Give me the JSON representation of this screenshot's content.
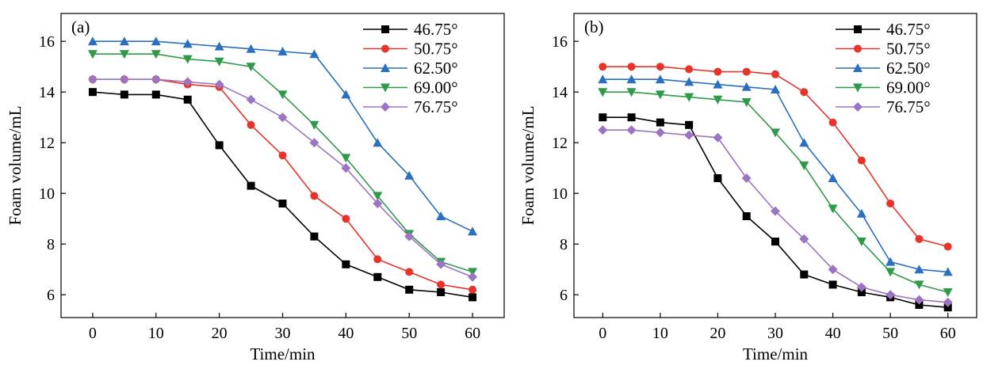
{
  "chart_data": [
    {
      "type": "line",
      "panel_label": "(a)",
      "xlabel": "Time/min",
      "ylabel": "Foam volume/mL",
      "xlim": [
        -5,
        65
      ],
      "ylim": [
        5.1,
        17.1
      ],
      "xticks": [
        0,
        10,
        20,
        30,
        40,
        50,
        60
      ],
      "yticks": [
        6,
        8,
        10,
        12,
        14,
        16
      ],
      "grid": false,
      "legend_position": "top-right",
      "x": [
        0,
        5,
        10,
        15,
        20,
        25,
        30,
        35,
        40,
        45,
        50,
        55,
        60
      ],
      "series": [
        {
          "name": "46.75°",
          "color": "#000000",
          "marker": "square",
          "values": [
            14.0,
            13.9,
            13.9,
            13.7,
            11.9,
            10.3,
            9.6,
            8.3,
            7.2,
            6.7,
            6.2,
            6.1,
            5.9
          ]
        },
        {
          "name": "50.75°",
          "color": "#e8332a",
          "marker": "circle",
          "values": [
            14.5,
            14.5,
            14.5,
            14.3,
            14.2,
            12.7,
            11.5,
            9.9,
            9.0,
            7.4,
            6.9,
            6.4,
            6.2
          ]
        },
        {
          "name": "62.50°",
          "color": "#2a6fc0",
          "marker": "triangle-up",
          "values": [
            16.0,
            16.0,
            16.0,
            15.9,
            15.8,
            15.7,
            15.6,
            15.5,
            13.9,
            12.0,
            10.7,
            9.1,
            8.5
          ]
        },
        {
          "name": "69.00°",
          "color": "#2e9a4a",
          "marker": "triangle-down",
          "values": [
            15.5,
            15.5,
            15.5,
            15.3,
            15.2,
            15.0,
            13.9,
            12.7,
            11.4,
            9.9,
            8.4,
            7.3,
            6.9
          ]
        },
        {
          "name": "76.75°",
          "color": "#9b75c4",
          "marker": "diamond",
          "values": [
            14.5,
            14.5,
            14.5,
            14.4,
            14.3,
            13.7,
            13.0,
            12.0,
            11.0,
            9.6,
            8.3,
            7.2,
            6.7
          ]
        }
      ]
    },
    {
      "type": "line",
      "panel_label": "(b)",
      "xlabel": "Time/min",
      "ylabel": "Foam volume/mL",
      "xlim": [
        -5,
        65
      ],
      "ylim": [
        5.1,
        17.1
      ],
      "xticks": [
        0,
        10,
        20,
        30,
        40,
        50,
        60
      ],
      "yticks": [
        6,
        8,
        10,
        12,
        14,
        16
      ],
      "grid": false,
      "legend_position": "top-right",
      "x": [
        0,
        5,
        10,
        15,
        20,
        25,
        30,
        35,
        40,
        45,
        50,
        55,
        60
      ],
      "series": [
        {
          "name": "46.75°",
          "color": "#000000",
          "marker": "square",
          "values": [
            13.0,
            13.0,
            12.8,
            12.7,
            10.6,
            9.1,
            8.1,
            6.8,
            6.4,
            6.1,
            5.9,
            5.6,
            5.5
          ]
        },
        {
          "name": "50.75°",
          "color": "#e8332a",
          "marker": "circle",
          "values": [
            15.0,
            15.0,
            15.0,
            14.9,
            14.8,
            14.8,
            14.7,
            14.0,
            12.8,
            11.3,
            9.6,
            8.2,
            7.9
          ]
        },
        {
          "name": "62.50°",
          "color": "#2a6fc0",
          "marker": "triangle-up",
          "values": [
            14.5,
            14.5,
            14.5,
            14.4,
            14.3,
            14.2,
            14.1,
            12.0,
            10.6,
            9.2,
            7.3,
            7.0,
            6.9
          ]
        },
        {
          "name": "69.00°",
          "color": "#2e9a4a",
          "marker": "triangle-down",
          "values": [
            14.0,
            14.0,
            13.9,
            13.8,
            13.7,
            13.6,
            12.4,
            11.1,
            9.4,
            8.1,
            6.9,
            6.4,
            6.1
          ]
        },
        {
          "name": "76.75°",
          "color": "#9b75c4",
          "marker": "diamond",
          "values": [
            12.5,
            12.5,
            12.4,
            12.3,
            12.2,
            10.6,
            9.3,
            8.2,
            7.0,
            6.3,
            6.0,
            5.8,
            5.7
          ]
        }
      ]
    }
  ]
}
